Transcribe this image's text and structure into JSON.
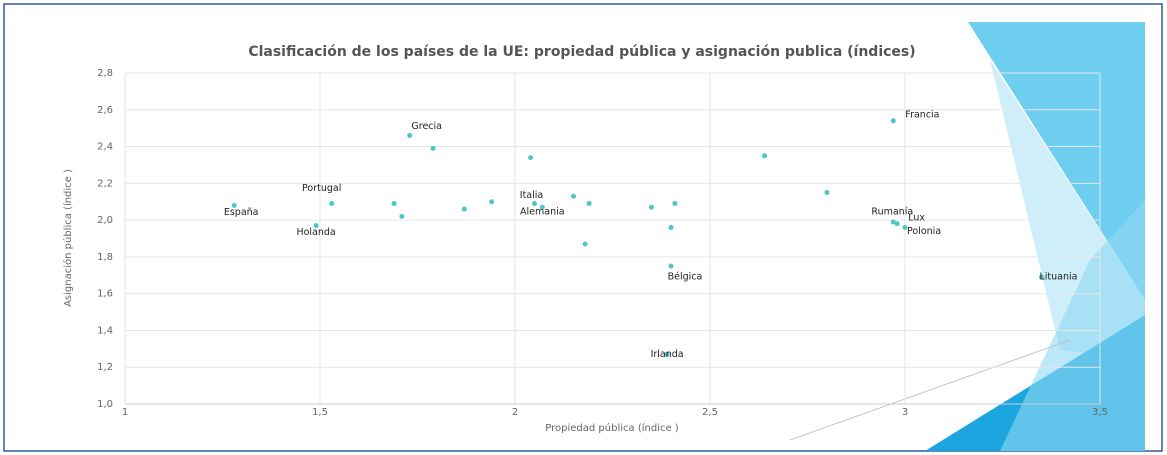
{
  "chart_data": {
    "type": "scatter",
    "title": "Clasificación de los países de la UE: propiedad pública y asignación publica (índices)",
    "x_label": "Propiedad pública (índice )",
    "y_label": "Asignación pública (índice )",
    "x": [
      1.28,
      1.53,
      1.49,
      1.73,
      1.79,
      1.69,
      1.71,
      1.87,
      1.94,
      2.04,
      2.05,
      2.07,
      2.15,
      2.19,
      2.18,
      2.35,
      2.41,
      2.4,
      2.4,
      2.39,
      2.64,
      2.8,
      2.97,
      2.97,
      2.98,
      3.0,
      3.35
    ],
    "values": [
      2.08,
      2.09,
      1.97,
      2.46,
      2.39,
      2.09,
      2.02,
      2.06,
      2.1,
      2.34,
      2.09,
      2.07,
      2.13,
      2.09,
      1.87,
      2.07,
      2.09,
      1.96,
      1.75,
      1.27,
      2.35,
      2.15,
      2.54,
      1.99,
      1.98,
      1.96,
      1.69
    ],
    "labels": [
      "España",
      "Portugal",
      "Holanda",
      "Grecia",
      null,
      null,
      null,
      null,
      null,
      null,
      "Italia",
      "Alemania",
      null,
      null,
      null,
      null,
      null,
      null,
      "Bélgica",
      "Irlanda",
      null,
      null,
      "Francia",
      "Rumanía",
      "Lux",
      "Polonia",
      "Lituania"
    ],
    "color": "#4fc6c8",
    "xlim": [
      1,
      3.5
    ],
    "ylim": [
      1.0,
      2.8
    ],
    "xticks": [
      1,
      {
        "value": 1.5,
        "label": "1,5"
      },
      2,
      {
        "value": 2.5,
        "label": "2,5"
      },
      3,
      {
        "value": 3.5,
        "label": "3,5"
      }
    ],
    "yticks": [
      {
        "value": 1.0,
        "label": "1,0"
      },
      {
        "value": 1.2,
        "label": "1,2"
      },
      {
        "value": 1.4,
        "label": "1,4"
      },
      {
        "value": 1.6,
        "label": "1,6"
      },
      {
        "value": 1.8,
        "label": "1,8"
      },
      {
        "value": 2.0,
        "label": "2,0"
      },
      {
        "value": 2.2,
        "label": "2,2"
      },
      {
        "value": 2.4,
        "label": "2,4"
      },
      {
        "value": 2.6,
        "label": "2,6"
      },
      {
        "value": 2.8,
        "label": "2,8"
      }
    ],
    "grid": true
  }
}
